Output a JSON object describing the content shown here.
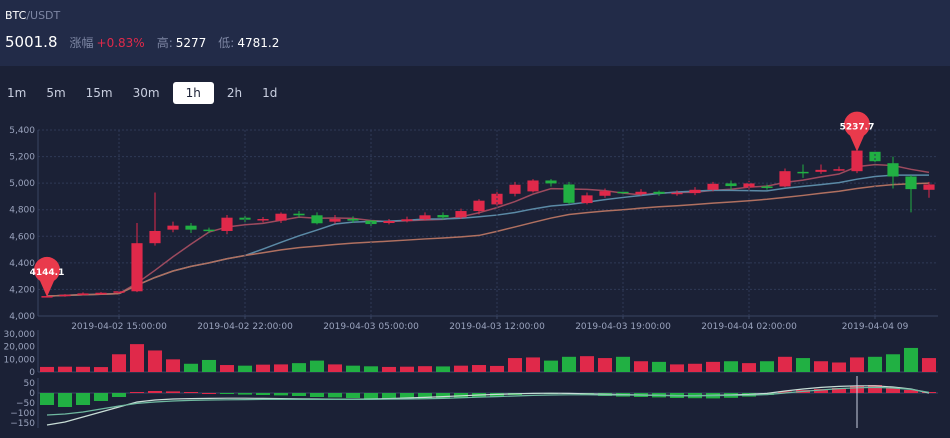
{
  "header": {
    "base": "BTC",
    "quote": "/USDT",
    "last_price": "5001.8",
    "change_label": "涨幅",
    "change_value": "+0.83%",
    "high_label": "高:",
    "high_value": "5277",
    "low_label": "低:",
    "low_value": "4781.2"
  },
  "tabs": [
    {
      "label": "1m"
    },
    {
      "label": "5m"
    },
    {
      "label": "15m"
    },
    {
      "label": "30m"
    },
    {
      "label": "1h",
      "active": true
    },
    {
      "label": "2h"
    },
    {
      "label": "1d"
    }
  ],
  "colors": {
    "up": "#e0294a",
    "down": "#21b043",
    "ma1": "#9c4a5e",
    "ma2": "#5b8aa6",
    "ma3": "#b07060",
    "pin": "#e93a4c",
    "grid": "#2f3957"
  },
  "chart_data": {
    "type": "candlestick",
    "price_axis": {
      "ticks": [
        "5,400",
        "5,200",
        "5,000",
        "4,800",
        "4,600",
        "4,400",
        "4,200",
        "4,000"
      ],
      "ylim": [
        4000,
        5400
      ]
    },
    "time_axis": {
      "ticks": [
        "2019-04-02 15:00:00",
        "2019-04-02 22:00:00",
        "2019-04-03 05:00:00",
        "2019-04-03 12:00:00",
        "2019-04-03 19:00:00",
        "2019-04-04 02:00:00",
        "2019-04-04 09"
      ]
    },
    "markers": {
      "low": "4144.1",
      "high": "5237.7"
    },
    "candles": [
      [
        4148,
        4150,
        4150,
        4140
      ],
      [
        4150,
        4160,
        4165,
        4145
      ],
      [
        4160,
        4170,
        4178,
        4155
      ],
      [
        4172,
        4175,
        4180,
        4162
      ],
      [
        4178,
        4186,
        4195,
        4170
      ],
      [
        4186,
        4548,
        4700,
        4180
      ],
      [
        4548,
        4640,
        4930,
        4530
      ],
      [
        4650,
        4680,
        4710,
        4630
      ],
      [
        4680,
        4650,
        4700,
        4625
      ],
      [
        4650,
        4640,
        4665,
        4625
      ],
      [
        4640,
        4740,
        4760,
        4615
      ],
      [
        4740,
        4725,
        4758,
        4705
      ],
      [
        4725,
        4730,
        4745,
        4705
      ],
      [
        4718,
        4770,
        4780,
        4700
      ],
      [
        4770,
        4758,
        4790,
        4740
      ],
      [
        4758,
        4698,
        4780,
        4690
      ],
      [
        4710,
        4730,
        4760,
        4695
      ],
      [
        4730,
        4718,
        4750,
        4700
      ],
      [
        4718,
        4692,
        4730,
        4675
      ],
      [
        4700,
        4715,
        4730,
        4690
      ],
      [
        4715,
        4728,
        4748,
        4705
      ],
      [
        4728,
        4758,
        4780,
        4720
      ],
      [
        4760,
        4742,
        4780,
        4725
      ],
      [
        4742,
        4790,
        4808,
        4730
      ],
      [
        4790,
        4868,
        4880,
        4765
      ],
      [
        4840,
        4920,
        4950,
        4830
      ],
      [
        4920,
        4988,
        5010,
        4900
      ],
      [
        4938,
        5020,
        5030,
        4930
      ],
      [
        5020,
        4998,
        5030,
        4975
      ],
      [
        4990,
        4852,
        5010,
        4840
      ],
      [
        4850,
        4908,
        4930,
        4840
      ],
      [
        4905,
        4940,
        4960,
        4890
      ],
      [
        4935,
        4925,
        4950,
        4905
      ],
      [
        4918,
        4935,
        4955,
        4905
      ],
      [
        4935,
        4920,
        4945,
        4905
      ],
      [
        4920,
        4928,
        4945,
        4905
      ],
      [
        4925,
        4950,
        4970,
        4910
      ],
      [
        4950,
        4995,
        5010,
        4938
      ],
      [
        4998,
        4978,
        5020,
        4950
      ],
      [
        4968,
        4998,
        5018,
        4952
      ],
      [
        4975,
        4968,
        4990,
        4950
      ],
      [
        4975,
        5090,
        5110,
        4970
      ],
      [
        5085,
        5080,
        5140,
        5040
      ],
      [
        5085,
        5100,
        5140,
        5070
      ],
      [
        5095,
        5105,
        5125,
        5090
      ],
      [
        5090,
        5245,
        5250,
        5075
      ],
      [
        5236,
        5165,
        5240,
        5140
      ],
      [
        5150,
        5050,
        5200,
        4960
      ],
      [
        5050,
        4955,
        5060,
        4780
      ],
      [
        4950,
        4990,
        5010,
        4890
      ]
    ],
    "volume": {
      "ticks": [
        "30,000",
        "20,000",
        "10,000",
        "0"
      ],
      "ylim": [
        0,
        30000
      ],
      "values": [
        4000,
        4200,
        4100,
        3900,
        14000,
        22000,
        17000,
        10000,
        6500,
        9500,
        5500,
        5000,
        5800,
        6000,
        7000,
        9000,
        6000,
        5000,
        4500,
        4000,
        4200,
        4600,
        4400,
        5000,
        5500,
        4800,
        11000,
        11500,
        9000,
        12000,
        12500,
        11000,
        12000,
        8500,
        8000,
        6000,
        6500,
        8000,
        8500,
        7000,
        8500,
        12000,
        11000,
        8500,
        7500,
        11500,
        12000,
        14000,
        19000,
        11000
      ]
    },
    "macd": {
      "ticks": [
        "50",
        "0",
        "−50",
        "−100",
        "−150"
      ],
      "ylim": [
        -175,
        75
      ],
      "hist": [
        -60,
        -70,
        -60,
        -40,
        -20,
        5,
        10,
        8,
        5,
        0,
        -5,
        -8,
        -10,
        -12,
        -15,
        -20,
        -22,
        -25,
        -28,
        -30,
        -32,
        -30,
        -28,
        -25,
        -22,
        -18,
        -10,
        -5,
        -2,
        -5,
        -10,
        -15,
        -18,
        -20,
        -22,
        -25,
        -26,
        -27,
        -24,
        -18,
        -10,
        8,
        15,
        20,
        25,
        35,
        40,
        30,
        15,
        5
      ],
      "dif": [
        -160,
        -145,
        -120,
        -95,
        -70,
        -45,
        -35,
        -30,
        -28,
        -27,
        -26,
        -26,
        -27,
        -28,
        -29,
        -30,
        -31,
        -31,
        -30,
        -28,
        -25,
        -22,
        -18,
        -14,
        -10,
        -7,
        -4,
        -2,
        -1,
        -2,
        -4,
        -6,
        -8,
        -10,
        -12,
        -13,
        -13,
        -12,
        -10,
        -7,
        -2,
        10,
        20,
        28,
        33,
        36,
        36,
        30,
        20,
        0
      ],
      "dea": [
        -110,
        -105,
        -95,
        -80,
        -65,
        -52,
        -45,
        -40,
        -37,
        -35,
        -34,
        -33,
        -32,
        -32,
        -32,
        -32,
        -32,
        -32,
        -32,
        -31,
        -30,
        -29,
        -27,
        -24,
        -21,
        -18,
        -15,
        -12,
        -10,
        -9,
        -9,
        -10,
        -10,
        -11,
        -12,
        -13,
        -13,
        -13,
        -12,
        -11,
        -8,
        0,
        8,
        15,
        22,
        26,
        28,
        25,
        18,
        3
      ]
    }
  }
}
